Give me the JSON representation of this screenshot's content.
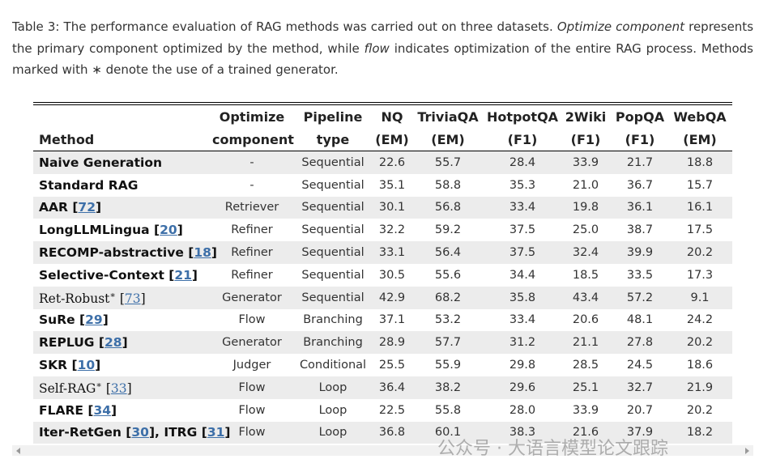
{
  "caption": [
    {
      "t": "Table 3: The performance evaluation of RAG methods was carried out on three datasets. "
    },
    {
      "i": "Optimize component"
    },
    {
      "t": " represents the primary component optimized by the method, while "
    },
    {
      "i": "flow"
    },
    {
      "t": " indicates optimization of the entire RAG process. Methods marked with ∗ denote the use of a trained generator."
    }
  ],
  "table": {
    "headers": [
      [
        "Method"
      ],
      [
        "Optimize",
        "component"
      ],
      [
        "Pipeline",
        "type"
      ],
      [
        "NQ",
        "(EM)"
      ],
      [
        "TriviaQA",
        "(EM)"
      ],
      [
        "HotpotQA",
        "(F1)"
      ],
      [
        "2Wiki",
        "(F1)"
      ],
      [
        "PopQA",
        "(F1)"
      ],
      [
        "WebQA",
        "(EM)"
      ]
    ],
    "rows": [
      {
        "method": [
          {
            "t": "Naive Generation"
          }
        ],
        "cells": [
          "-",
          "Sequential",
          "22.6",
          "55.7",
          "28.4",
          "33.9",
          "21.7",
          "18.8"
        ]
      },
      {
        "method": [
          {
            "t": "Standard RAG"
          }
        ],
        "cells": [
          "-",
          "Sequential",
          "35.1",
          "58.8",
          "35.3",
          "21.0",
          "36.7",
          "15.7"
        ]
      },
      {
        "method": [
          {
            "t": "AAR ["
          },
          {
            "ref": "72"
          },
          {
            "t": "]"
          }
        ],
        "cells": [
          "Retriever",
          "Sequential",
          "30.1",
          "56.8",
          "33.4",
          "19.8",
          "36.1",
          "16.1"
        ]
      },
      {
        "method": [
          {
            "t": "LongLLMLingua ["
          },
          {
            "ref": "20"
          },
          {
            "t": "]"
          }
        ],
        "cells": [
          "Refiner",
          "Sequential",
          "32.2",
          "59.2",
          "37.5",
          "25.0",
          "38.7",
          "17.5"
        ]
      },
      {
        "method": [
          {
            "t": "RECOMP-abstractive ["
          },
          {
            "ref": "18"
          },
          {
            "t": "]"
          }
        ],
        "cells": [
          "Refiner",
          "Sequential",
          "33.1",
          "56.4",
          "37.5",
          "32.4",
          "39.9",
          "20.2"
        ]
      },
      {
        "method": [
          {
            "t": "Selective-Context ["
          },
          {
            "ref": "21"
          },
          {
            "t": "]"
          }
        ],
        "cells": [
          "Refiner",
          "Sequential",
          "30.5",
          "55.6",
          "34.4",
          "18.5",
          "33.5",
          "17.3"
        ]
      },
      {
        "method": [
          {
            "t": "Ret-Robust"
          },
          {
            "sup": "∗"
          },
          {
            "t": " ["
          },
          {
            "ref": "73"
          },
          {
            "t": "]"
          }
        ],
        "serif": true,
        "cells": [
          "Generator",
          "Sequential",
          "42.9",
          "68.2",
          "35.8",
          "43.4",
          "57.2",
          "9.1"
        ]
      },
      {
        "method": [
          {
            "t": "SuRe ["
          },
          {
            "ref": "29"
          },
          {
            "t": "]"
          }
        ],
        "cells": [
          "Flow",
          "Branching",
          "37.1",
          "53.2",
          "33.4",
          "20.6",
          "48.1",
          "24.2"
        ]
      },
      {
        "method": [
          {
            "t": "REPLUG ["
          },
          {
            "ref": "28"
          },
          {
            "t": "]"
          }
        ],
        "cells": [
          "Generator",
          "Branching",
          "28.9",
          "57.7",
          "31.2",
          "21.1",
          "27.8",
          "20.2"
        ]
      },
      {
        "method": [
          {
            "t": "SKR ["
          },
          {
            "ref": "10"
          },
          {
            "t": "]"
          }
        ],
        "cells": [
          "Judger",
          "Conditional",
          "25.5",
          "55.9",
          "29.8",
          "28.5",
          "24.5",
          "18.6"
        ]
      },
      {
        "method": [
          {
            "t": "Self-RAG"
          },
          {
            "sup": "∗"
          },
          {
            "t": " ["
          },
          {
            "ref": "33"
          },
          {
            "t": "]"
          }
        ],
        "serif": true,
        "cells": [
          "Flow",
          "Loop",
          "36.4",
          "38.2",
          "29.6",
          "25.1",
          "32.7",
          "21.9"
        ]
      },
      {
        "method": [
          {
            "t": "FLARE ["
          },
          {
            "ref": "34"
          },
          {
            "t": "]"
          }
        ],
        "cells": [
          "Flow",
          "Loop",
          "22.5",
          "55.8",
          "28.0",
          "33.9",
          "20.7",
          "20.2"
        ]
      },
      {
        "method": [
          {
            "t": "Iter-RetGen ["
          },
          {
            "ref": "30"
          },
          {
            "t": "], ITRG  ["
          },
          {
            "ref": "31"
          },
          {
            "t": "]"
          }
        ],
        "cells": [
          "Flow",
          "Loop",
          "36.8",
          "60.1",
          "38.3",
          "21.6",
          "37.9",
          "18.2"
        ]
      }
    ]
  },
  "watermark": "公众号 · 大语言模型论文跟踪"
}
